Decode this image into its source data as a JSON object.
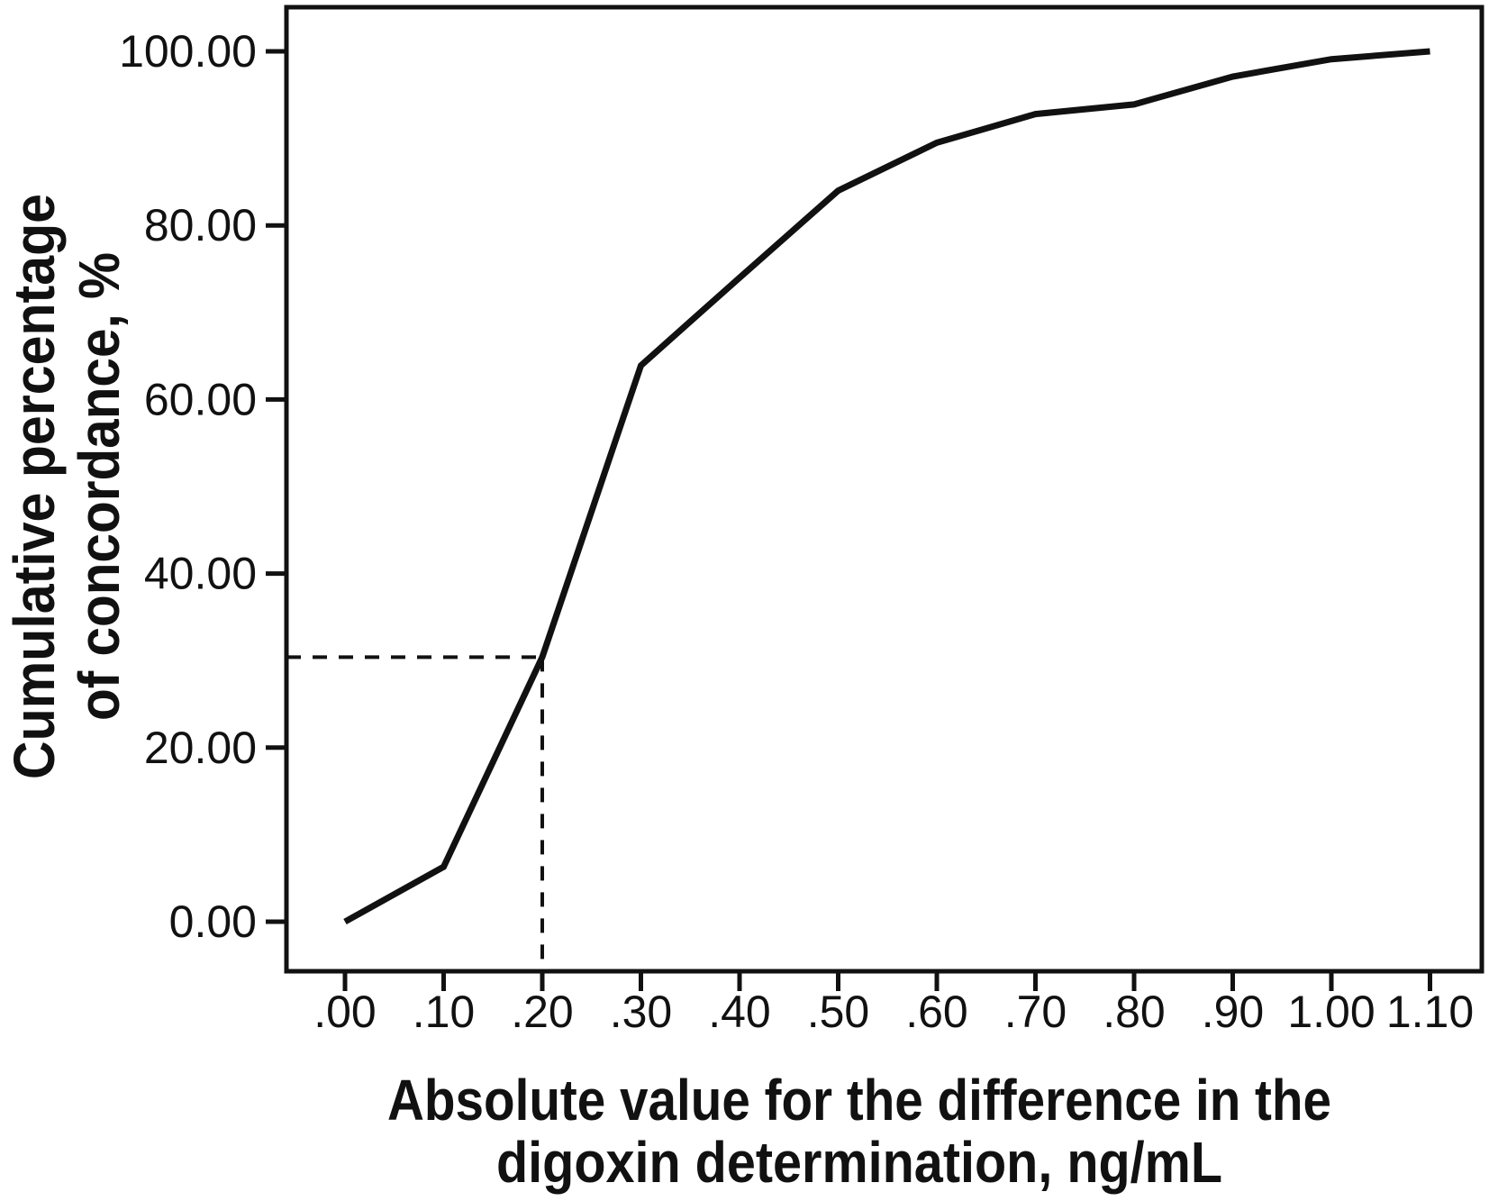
{
  "colors": {
    "ink": "#111111",
    "background": "#ffffff"
  },
  "chart_data": {
    "type": "line",
    "title": "",
    "xlabel": "Absolute value for the difference in the digoxin determination, ng/mL",
    "xlabel_lines": [
      "Absolute value for the difference in the",
      "digoxin determination, ng/mL"
    ],
    "ylabel": "Cumulative percentage of concordance, %",
    "ylabel_lines": [
      "Cumulative percentage",
      "of concordance, %"
    ],
    "x": [
      0.0,
      0.1,
      0.2,
      0.3,
      0.4,
      0.5,
      0.6,
      0.7,
      0.8,
      0.9,
      1.0,
      1.1
    ],
    "x_tick_labels": [
      ".00",
      ".10",
      ".20",
      ".30",
      ".40",
      ".50",
      ".60",
      ".70",
      ".80",
      ".90",
      "1.00",
      "1.10"
    ],
    "y_ticks": [
      0,
      20,
      40,
      60,
      80,
      100
    ],
    "y_tick_labels": [
      "0.00",
      "20.00",
      "40.00",
      "60.00",
      "80.00",
      "100.00"
    ],
    "series": [
      {
        "name": "Cumulative percentage of concordance",
        "values": [
          0.0,
          6.3,
          30.4,
          63.9,
          74.0,
          84.0,
          89.5,
          92.8,
          93.9,
          97.1,
          99.1,
          100.0
        ]
      }
    ],
    "reference_point": {
      "x": 0.2,
      "y": 30.4,
      "style": "dashed"
    },
    "xlim": [
      -0.06,
      1.15
    ],
    "ylim": [
      -5.7,
      105.1
    ],
    "grid": false,
    "legend": false,
    "line_color": "#111111"
  }
}
